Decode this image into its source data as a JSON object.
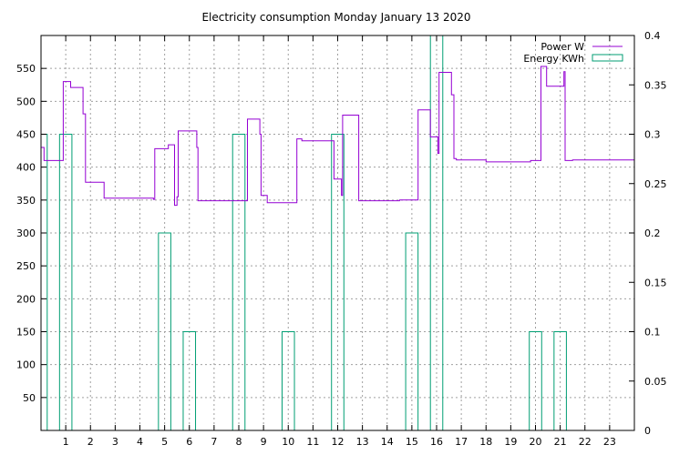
{
  "chart_data": {
    "type": "line",
    "title": "Electricity consumption Monday January 13 2020",
    "xlabel": "",
    "ylabel": "",
    "y2label": "",
    "x_range": [
      0,
      24
    ],
    "xlim": [
      0,
      24
    ],
    "ylim": [
      0,
      600
    ],
    "y2lim": [
      0,
      0.4
    ],
    "x_ticks": [
      1,
      2,
      3,
      4,
      5,
      6,
      7,
      8,
      9,
      10,
      11,
      12,
      13,
      14,
      15,
      16,
      17,
      18,
      19,
      20,
      21,
      22,
      23
    ],
    "y_ticks": [
      50,
      100,
      150,
      200,
      250,
      300,
      350,
      400,
      450,
      500,
      550
    ],
    "y2_ticks": [
      0,
      0.05,
      0.1,
      0.15,
      0.2,
      0.25,
      0.3,
      0.35,
      0.4
    ],
    "y2_tick_labels": [
      "0",
      "0.05",
      "0.1",
      "0.15",
      "0.2",
      "0.25",
      "0.3",
      "0.35",
      "0.4"
    ],
    "grid": true,
    "legend_position": "top-right",
    "colors": {
      "power": "#9400d3",
      "energy": "#009e73"
    },
    "series": [
      {
        "name": "Power W",
        "axis": "left",
        "style": "steps",
        "points": [
          [
            0,
            430
          ],
          [
            0.12,
            410
          ],
          [
            0.85,
            410
          ],
          [
            0.9,
            530
          ],
          [
            1.2,
            521
          ],
          [
            1.7,
            481
          ],
          [
            1.8,
            377
          ],
          [
            2.55,
            353
          ],
          [
            4.55,
            351
          ],
          [
            4.6,
            428
          ],
          [
            5.1,
            428
          ],
          [
            5.15,
            434
          ],
          [
            5.4,
            342
          ],
          [
            5.5,
            355
          ],
          [
            5.55,
            455
          ],
          [
            6.3,
            430
          ],
          [
            6.35,
            349
          ],
          [
            8.3,
            349
          ],
          [
            8.35,
            473
          ],
          [
            8.85,
            450
          ],
          [
            8.9,
            357
          ],
          [
            9.15,
            346
          ],
          [
            10.3,
            346
          ],
          [
            10.35,
            443
          ],
          [
            10.55,
            440
          ],
          [
            11.8,
            440
          ],
          [
            11.85,
            382
          ],
          [
            12.15,
            357
          ],
          [
            12.2,
            479
          ],
          [
            12.75,
            479
          ],
          [
            12.85,
            349
          ],
          [
            14.5,
            350
          ],
          [
            15.2,
            350
          ],
          [
            15.25,
            487
          ],
          [
            15.75,
            446
          ],
          [
            16.05,
            421
          ],
          [
            16.1,
            544
          ],
          [
            16.55,
            544
          ],
          [
            16.6,
            510
          ],
          [
            16.7,
            413
          ],
          [
            16.8,
            411
          ],
          [
            18,
            408
          ],
          [
            19.8,
            410
          ],
          [
            20.2,
            410
          ],
          [
            20.22,
            553
          ],
          [
            20.45,
            523
          ],
          [
            21.1,
            523
          ],
          [
            21.15,
            545
          ],
          [
            21.2,
            410
          ],
          [
            21.5,
            411
          ],
          [
            23.8,
            411
          ],
          [
            24,
            409
          ]
        ]
      },
      {
        "name": "Energy KWh",
        "axis": "right",
        "style": "impulse_bars",
        "bar_width": 0.5,
        "x": [
          0,
          1,
          5,
          6,
          8,
          10,
          12,
          15,
          16,
          20,
          21
        ],
        "values": [
          0.3,
          0.3,
          0.2,
          0.1,
          0.3,
          0.1,
          0.3,
          0.2,
          0.4,
          0.1,
          0.1
        ]
      }
    ]
  }
}
